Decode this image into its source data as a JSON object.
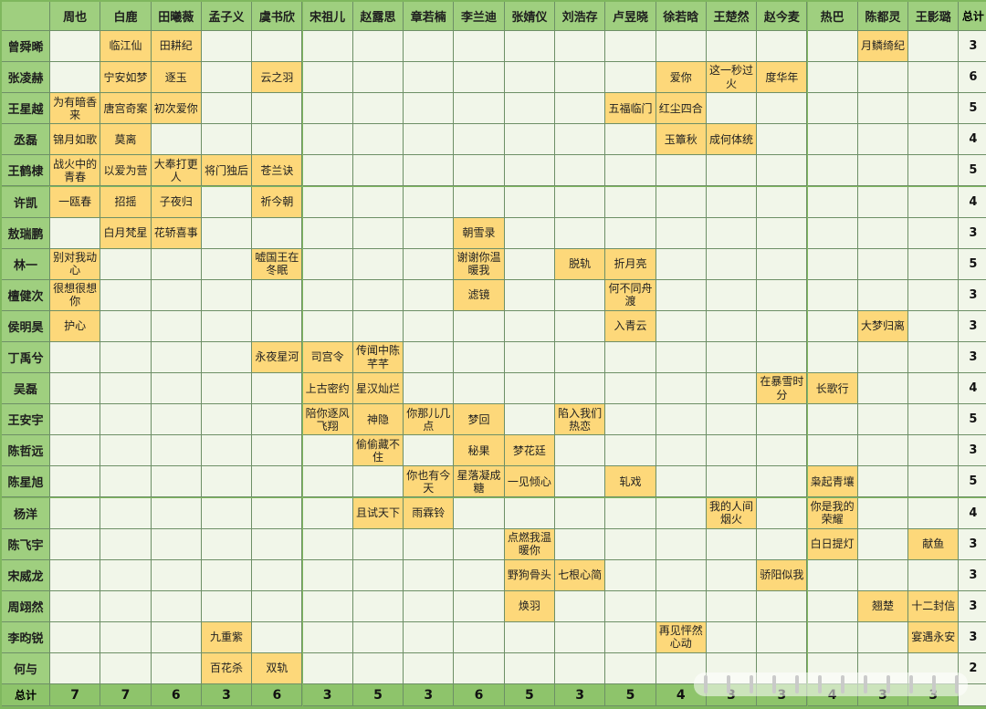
{
  "header": {
    "corner": "",
    "columns": [
      "周也",
      "白鹿",
      "田曦薇",
      "孟子义",
      "虞书欣",
      "宋祖儿",
      "赵露思",
      "章若楠",
      "李兰迪",
      "张婧仪",
      "刘浩存",
      "卢昱晓",
      "徐若晗",
      "王楚然",
      "赵今麦",
      "热巴",
      "陈都灵",
      "王影璐"
    ],
    "total_label": "总计"
  },
  "rows": [
    {
      "name": "曾舜晞",
      "cells": {
        "1": "临江仙",
        "2": "田耕纪",
        "16": "月鳞绮纪"
      },
      "total": "3"
    },
    {
      "name": "张凌赫",
      "cells": {
        "1": "宁安如梦",
        "2": "逐玉",
        "4": "云之羽",
        "12": "爱你",
        "13": "这一秒过火",
        "14": "度华年"
      },
      "total": "6"
    },
    {
      "name": "王星越",
      "cells": {
        "0": "为有暗香来",
        "1": "唐宫奇案",
        "2": "初次爱你",
        "11": "五福临门",
        "12": "红尘四合"
      },
      "total": "5"
    },
    {
      "name": "丞磊",
      "cells": {
        "0": "锦月如歌",
        "1": "莫离",
        "12": "玉簟秋",
        "13": "成何体统"
      },
      "total": "4"
    },
    {
      "name": "王鹤棣",
      "cells": {
        "0": "战火中的青春",
        "1": "以爱为营",
        "2": "大奉打更人",
        "3": "将门独后",
        "4": "苍兰诀"
      },
      "total": "5"
    },
    {
      "name": "许凯",
      "cells": {
        "0": "一瓯春",
        "1": "招摇",
        "2": "子夜归",
        "4": "祈今朝"
      },
      "total": "4"
    },
    {
      "name": "敖瑞鹏",
      "cells": {
        "1": "白月梵星",
        "2": "花轿喜事",
        "8": "朝雪录"
      },
      "total": "3"
    },
    {
      "name": "林一",
      "cells": {
        "0": "别对我动心",
        "4": "嘘国王在冬眠",
        "8": "谢谢你温暖我",
        "10": "脱轨",
        "11": "折月亮"
      },
      "total": "5"
    },
    {
      "name": "檀健次",
      "cells": {
        "0": "很想很想你",
        "8": "滤镜",
        "11": "何不同舟渡"
      },
      "total": "3"
    },
    {
      "name": "侯明昊",
      "cells": {
        "0": "护心",
        "11": "入青云",
        "16": "大梦归离"
      },
      "total": "3"
    },
    {
      "name": "丁禹兮",
      "cells": {
        "4": "永夜星河",
        "5": "司宫令",
        "6": "传闻中陈芊芊"
      },
      "total": "3"
    },
    {
      "name": "吴磊",
      "cells": {
        "5": "上古密约",
        "6": "星汉灿烂",
        "14": "在暴雪时分",
        "15": "长歌行"
      },
      "total": "4"
    },
    {
      "name": "王安宇",
      "cells": {
        "5": "陪你逐风飞翔",
        "6": "神隐",
        "7": "你那儿几点",
        "8": "梦回",
        "10": "陷入我们热恋"
      },
      "total": "5"
    },
    {
      "name": "陈哲远",
      "cells": {
        "6": "偷偷藏不住",
        "8": "秘果",
        "9": "梦花廷"
      },
      "total": "3"
    },
    {
      "name": "陈星旭",
      "cells": {
        "7": "你也有今天",
        "8": "星落凝成糖",
        "9": "一见倾心",
        "11": "轧戏",
        "15": "枭起青壤"
      },
      "total": "5"
    },
    {
      "name": "杨洋",
      "cells": {
        "6": "且试天下",
        "7": "雨霖铃",
        "13": "我的人间烟火",
        "15": "你是我的荣耀"
      },
      "total": "4"
    },
    {
      "name": "陈飞宇",
      "cells": {
        "9": "点燃我温暖你",
        "15": "白日提灯",
        "17": "献鱼"
      },
      "total": "3"
    },
    {
      "name": "宋威龙",
      "cells": {
        "9": "野狗骨头",
        "10": "七根心简",
        "14": "骄阳似我"
      },
      "total": "3"
    },
    {
      "name": "周翊然",
      "cells": {
        "9": "焕羽",
        "16": "翘楚",
        "17": "十二封信"
      },
      "total": "3"
    },
    {
      "name": "李昀锐",
      "cells": {
        "3": "九重紫",
        "12": "再见怦然心动",
        "17": "宴遇永安"
      },
      "total": "3"
    },
    {
      "name": "何与",
      "cells": {
        "3": "百花杀",
        "4": "双轨"
      },
      "total": "2"
    }
  ],
  "footer": {
    "label": "总计",
    "totals": [
      "7",
      "7",
      "6",
      "3",
      "6",
      "3",
      "5",
      "3",
      "6",
      "5",
      "3",
      "5",
      "4",
      "3",
      "3",
      "4",
      "3",
      "3"
    ],
    "grand_total": ""
  },
  "colors": {
    "header_bg": "#9fcf7f",
    "cell_bg": "#f1f6e9",
    "highlight_bg": "#fdd87a",
    "border": "#6d8f66",
    "footer_bg": "#8ec46b"
  },
  "watermark": {
    "icon": "watermark-strokes-icon"
  }
}
